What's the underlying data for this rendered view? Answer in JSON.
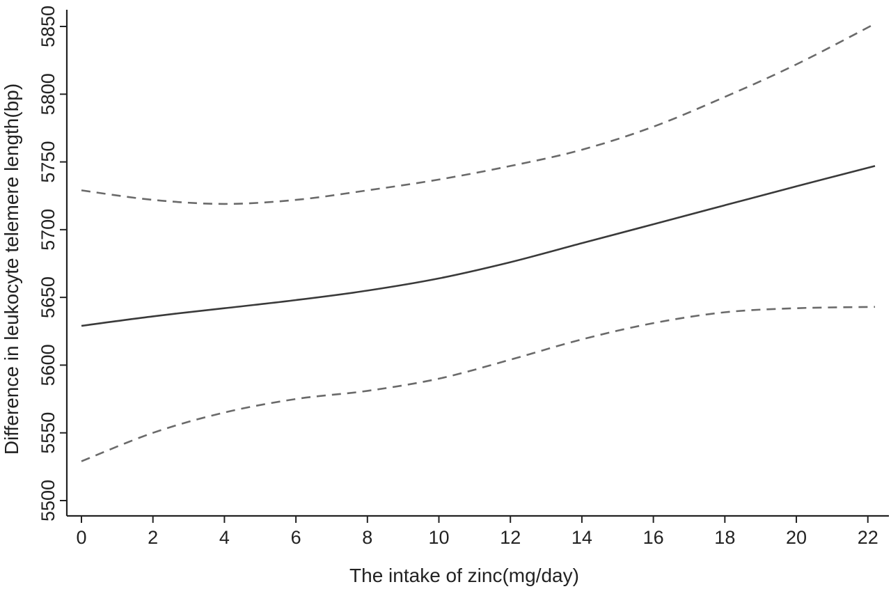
{
  "chart_data": {
    "type": "line",
    "title": "",
    "xlabel": "The intake of zinc(mg/day)",
    "ylabel": "Difference in leukocyte telemere length(bp)",
    "xlim": [
      0,
      22.2
    ],
    "ylim": [
      5500,
      5850
    ],
    "x_ticks": [
      0,
      2,
      4,
      6,
      8,
      10,
      12,
      14,
      16,
      18,
      20,
      22
    ],
    "y_ticks": [
      5500,
      5550,
      5600,
      5650,
      5700,
      5750,
      5800,
      5850
    ],
    "x_tick_labels": [
      "0",
      "2",
      "4",
      "6",
      "8",
      "10",
      "12",
      "14",
      "16",
      "18",
      "20",
      "22"
    ],
    "y_tick_labels": [
      "5500",
      "5550",
      "5600",
      "5650",
      "5700",
      "5750",
      "5800",
      "5850"
    ],
    "grid": false,
    "legend": "none",
    "x": [
      0,
      2,
      4,
      6,
      8,
      10,
      12,
      14,
      16,
      18,
      20,
      22.2
    ],
    "series": [
      {
        "style": "solid",
        "color": "#3a3a3a",
        "values": [
          5629,
          5636,
          5642,
          5648,
          5655,
          5664,
          5676,
          5690,
          5704,
          5718,
          5732,
          5747
        ]
      },
      {
        "style": "dashed",
        "color": "#6a6a6a",
        "values": [
          5729,
          5722,
          5719,
          5722,
          5729,
          5737,
          5747,
          5759,
          5776,
          5798,
          5822,
          5852
        ]
      },
      {
        "style": "dashed",
        "color": "#6a6a6a",
        "values": [
          5529,
          5550,
          5565,
          5575,
          5581,
          5590,
          5604,
          5619,
          5631,
          5639,
          5642,
          5643
        ]
      }
    ]
  }
}
